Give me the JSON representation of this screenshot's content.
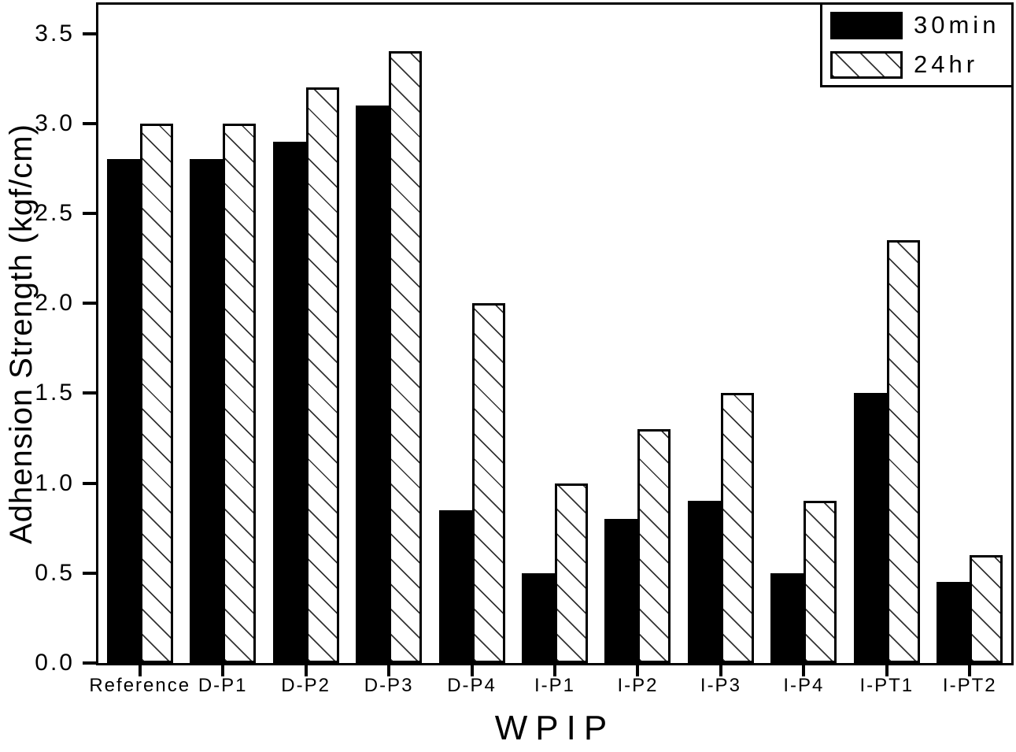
{
  "chart_data": {
    "type": "bar",
    "title": "",
    "xlabel": "WPIP",
    "ylabel": "Adhension Strength (kgf/cm)",
    "categories": [
      "Reference",
      "D-P1",
      "D-P2",
      "D-P3",
      "D-P4",
      "I-P1",
      "I-P2",
      "I-P3",
      "I-P4",
      "I-PT1",
      "I-PT2"
    ],
    "series": [
      {
        "name": "30min",
        "style": "solid-black",
        "values": [
          2.8,
          2.8,
          2.9,
          3.1,
          0.85,
          0.5,
          0.8,
          0.9,
          0.5,
          1.5,
          0.45
        ]
      },
      {
        "name": "24hr",
        "style": "diagonal-hatch",
        "values": [
          3.0,
          3.0,
          3.2,
          3.4,
          2.0,
          1.0,
          1.3,
          1.5,
          0.9,
          2.35,
          0.6
        ]
      }
    ],
    "ylim": [
      0,
      3.66
    ],
    "yticks": [
      "0.0",
      "0.5",
      "1.0",
      "1.5",
      "2.0",
      "2.5",
      "3.0",
      "3.5"
    ],
    "grid": false,
    "legend_position": "top-right",
    "colors": {
      "foreground": "#000000",
      "background": "#ffffff",
      "hatch_line": "#333333"
    }
  }
}
